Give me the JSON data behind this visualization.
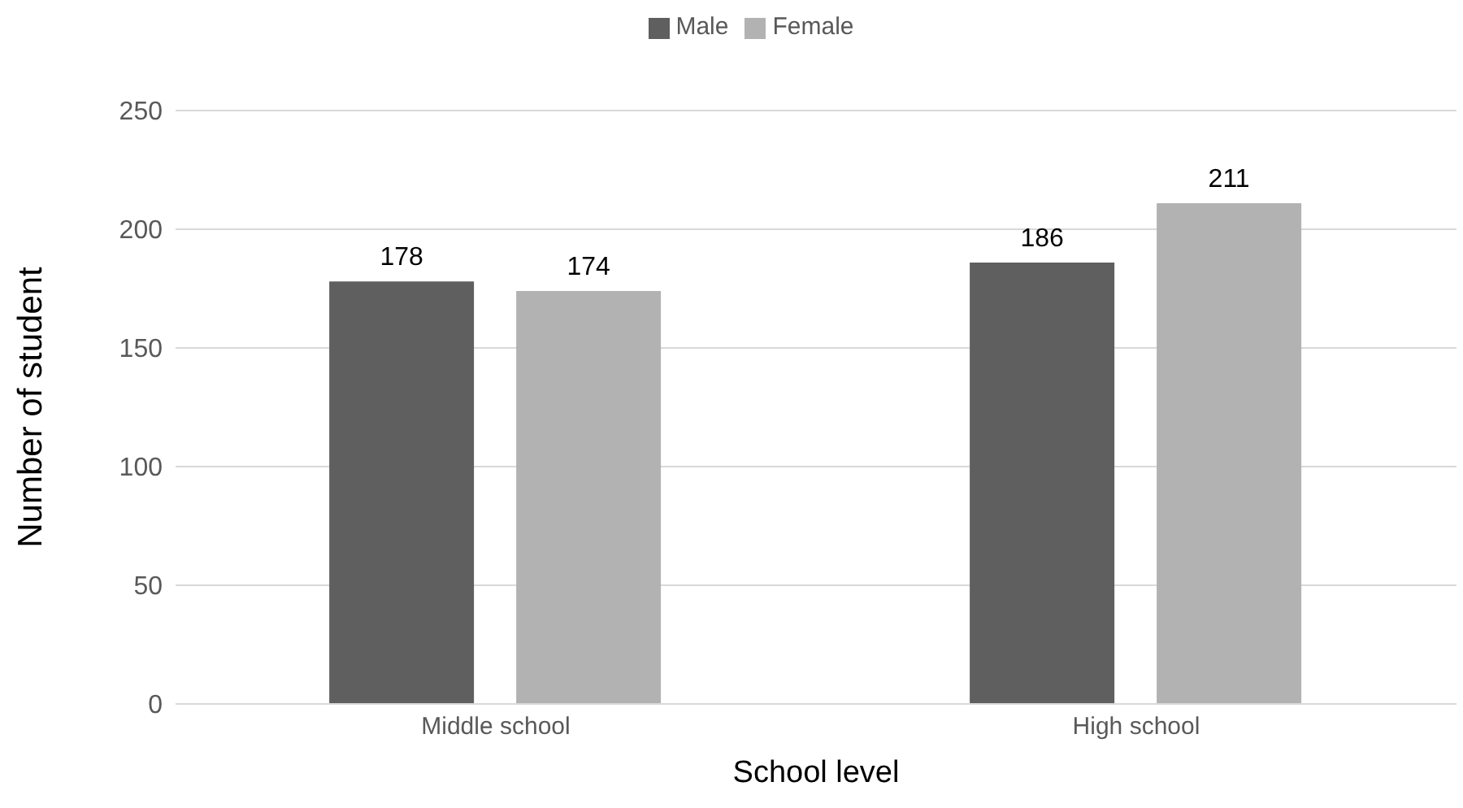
{
  "chart_data": {
    "type": "bar",
    "xlabel": "School level",
    "ylabel": "Number of student",
    "categories": [
      "Middle school",
      "High school"
    ],
    "series": [
      {
        "name": "Male",
        "color": "#5f5f5f",
        "values": [
          178,
          186
        ]
      },
      {
        "name": "Female",
        "color": "#b2b2b2",
        "values": [
          174,
          211
        ]
      }
    ],
    "ylim": [
      0,
      250
    ],
    "yticks": [
      0,
      50,
      100,
      150,
      200,
      250
    ],
    "grid": "y",
    "legend": "top",
    "data_labels": true
  }
}
